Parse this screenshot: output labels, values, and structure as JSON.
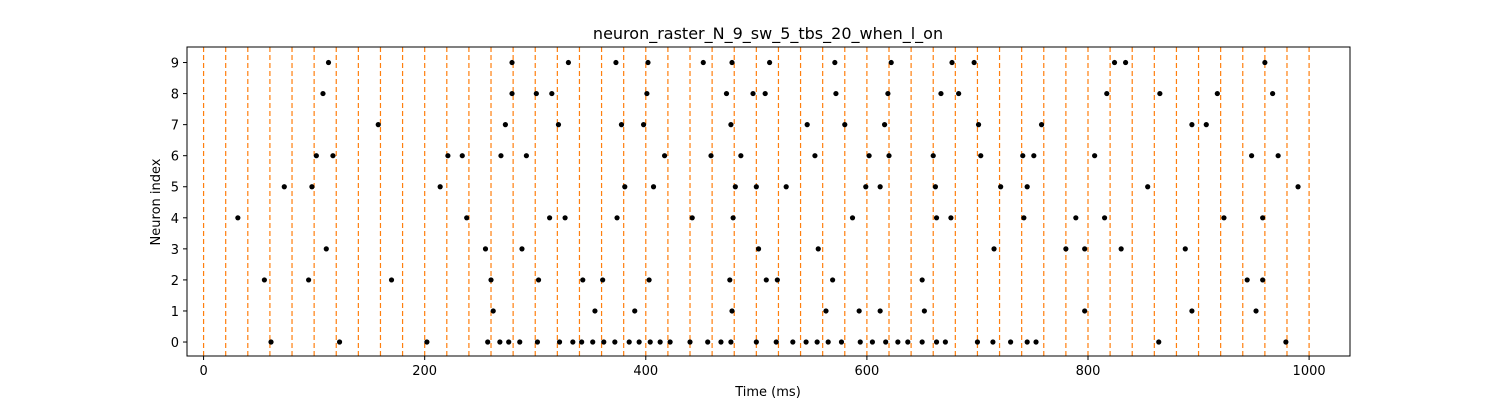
{
  "colors": {
    "spike": "#000000",
    "burst_line": "#ff7f0e",
    "axis": "#000000",
    "background": "#ffffff"
  },
  "chart_data": {
    "type": "scatter",
    "title": "neuron_raster_N_9_sw_5_tbs_20_when_l_on",
    "xlabel": "Time (ms)",
    "ylabel": "Neuron index",
    "xlim": [
      -15,
      1037
    ],
    "ylim": [
      -0.45,
      9.5
    ],
    "xticks": [
      0,
      200,
      400,
      600,
      800,
      1000
    ],
    "yticks": [
      0,
      1,
      2,
      3,
      4,
      5,
      6,
      7,
      8,
      9
    ],
    "grid": false,
    "legend": "none",
    "vertical_lines": {
      "style": "dashed",
      "x": [
        0,
        20,
        40,
        60,
        80,
        100,
        120,
        140,
        160,
        180,
        200,
        220,
        240,
        260,
        280,
        300,
        320,
        340,
        360,
        380,
        400,
        420,
        440,
        460,
        480,
        500,
        520,
        540,
        560,
        580,
        600,
        620,
        640,
        660,
        680,
        700,
        720,
        740,
        760,
        780,
        800,
        820,
        840,
        860,
        880,
        900,
        920,
        940,
        960,
        980,
        1000
      ]
    },
    "series": [
      {
        "neuron": 0,
        "x": [
          61,
          123,
          202,
          257,
          268,
          276,
          286,
          302,
          322,
          334,
          342,
          352,
          362,
          372,
          385,
          394,
          404,
          413,
          422,
          440,
          456,
          468,
          477,
          500,
          518,
          533,
          545,
          555,
          565,
          577,
          594,
          605,
          617,
          628,
          637,
          650,
          663,
          671,
          700,
          714,
          730,
          745,
          753,
          864,
          979
        ]
      },
      {
        "neuron": 1,
        "x": [
          262,
          354,
          390,
          478,
          563,
          593,
          612,
          652,
          797,
          894,
          952
        ]
      },
      {
        "neuron": 2,
        "x": [
          55,
          95,
          170,
          260,
          303,
          343,
          361,
          476,
          403,
          509,
          519,
          569,
          650,
          944,
          958
        ]
      },
      {
        "neuron": 3,
        "x": [
          111,
          255,
          288,
          502,
          556,
          715,
          780,
          797,
          830,
          888
        ]
      },
      {
        "neuron": 4,
        "x": [
          31,
          238,
          313,
          327,
          374,
          442,
          479,
          587,
          663,
          676,
          742,
          789,
          815,
          923,
          958
        ]
      },
      {
        "neuron": 5,
        "x": [
          73,
          98,
          214,
          381,
          407,
          481,
          500,
          527,
          599,
          612,
          662,
          721,
          745,
          854,
          990
        ]
      },
      {
        "neuron": 6,
        "x": [
          102,
          117,
          221,
          234,
          269,
          292,
          417,
          459,
          486,
          553,
          602,
          620,
          660,
          703,
          741,
          751,
          806,
          948,
          972
        ]
      },
      {
        "neuron": 7,
        "x": [
          158,
          273,
          321,
          378,
          398,
          477,
          546,
          580,
          616,
          701,
          758,
          894,
          907
        ]
      },
      {
        "neuron": 8,
        "x": [
          108,
          279,
          301,
          315,
          401,
          473,
          497,
          508,
          572,
          619,
          667,
          683,
          817,
          865,
          917,
          967
        ]
      },
      {
        "neuron": 9,
        "x": [
          113,
          279,
          330,
          373,
          402,
          452,
          478,
          512,
          571,
          622,
          677,
          697,
          824,
          834,
          960
        ]
      }
    ]
  }
}
